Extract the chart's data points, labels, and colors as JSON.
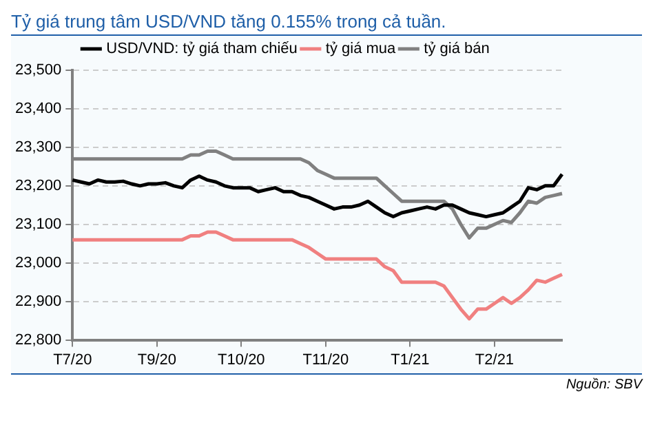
{
  "chart_data": {
    "type": "line",
    "title": "Tỷ giá trung tâm USD/VND tăng 0.155% trong cả tuần.",
    "categories": [
      "T7/20",
      null,
      null,
      null,
      null,
      null,
      null,
      null,
      null,
      null,
      "T9/20",
      null,
      null,
      null,
      null,
      null,
      null,
      null,
      null,
      null,
      "T10/20",
      null,
      null,
      null,
      null,
      null,
      null,
      null,
      null,
      null,
      "T11/20",
      null,
      null,
      null,
      null,
      null,
      null,
      null,
      null,
      null,
      "T1/21",
      null,
      null,
      null,
      null,
      null,
      null,
      null,
      null,
      null,
      "T2/21",
      null,
      null,
      null,
      null,
      null,
      null,
      null,
      null
    ],
    "series": [
      {
        "name": "USD/VND: tỷ giá tham chiếu",
        "color": "#000000",
        "values": [
          23215,
          23210,
          23205,
          23215,
          23210,
          23210,
          23212,
          23205,
          23200,
          23205,
          23205,
          23208,
          23200,
          23195,
          23215,
          23225,
          23215,
          23210,
          23200,
          23195,
          23195,
          23195,
          23185,
          23190,
          23195,
          23185,
          23185,
          23175,
          23170,
          23160,
          23150,
          23140,
          23145,
          23145,
          23150,
          23160,
          23145,
          23130,
          23120,
          23130,
          23135,
          23140,
          23145,
          23140,
          23150,
          23150,
          23140,
          23130,
          23125,
          23120,
          23125,
          23130,
          23145,
          23160,
          23195,
          23190,
          23200,
          23200,
          23230
        ]
      },
      {
        "name": "tỷ giá mua",
        "color": "#f08080",
        "values": [
          23060,
          23060,
          23060,
          23060,
          23060,
          23060,
          23060,
          23060,
          23060,
          23060,
          23060,
          23060,
          23060,
          23060,
          23070,
          23070,
          23080,
          23080,
          23070,
          23060,
          23060,
          23060,
          23060,
          23060,
          23060,
          23060,
          23060,
          23050,
          23040,
          23025,
          23010,
          23010,
          23010,
          23010,
          23010,
          23010,
          23010,
          22990,
          22980,
          22950,
          22950,
          22950,
          22950,
          22950,
          22940,
          22910,
          22880,
          22855,
          22880,
          22880,
          22895,
          22910,
          22895,
          22910,
          22930,
          22955,
          22950,
          22960,
          22970
        ]
      },
      {
        "name": "tỷ giá bán",
        "color": "#808080",
        "values": [
          23270,
          23270,
          23270,
          23270,
          23270,
          23270,
          23270,
          23270,
          23270,
          23270,
          23270,
          23270,
          23270,
          23270,
          23280,
          23280,
          23290,
          23290,
          23280,
          23270,
          23270,
          23270,
          23270,
          23270,
          23270,
          23270,
          23270,
          23270,
          23260,
          23240,
          23230,
          23220,
          23220,
          23220,
          23220,
          23220,
          23220,
          23200,
          23180,
          23160,
          23160,
          23160,
          23160,
          23160,
          23160,
          23140,
          23100,
          23065,
          23090,
          23090,
          23100,
          23110,
          23105,
          23130,
          23160,
          23155,
          23170,
          23175,
          23180
        ]
      }
    ],
    "ylim": [
      22800,
      23500
    ],
    "yticks": [
      {
        "value": 22800,
        "label": "22,800"
      },
      {
        "value": 22900,
        "label": "22,900"
      },
      {
        "value": 23000,
        "label": "23,000"
      },
      {
        "value": 23100,
        "label": "23,100"
      },
      {
        "value": 23200,
        "label": "23,200"
      },
      {
        "value": 23300,
        "label": "23,300"
      },
      {
        "value": 23400,
        "label": "23,400"
      },
      {
        "value": 23500,
        "label": "23,500"
      }
    ],
    "grid": "y",
    "legend": "top",
    "marker": "none",
    "line_style": "solid",
    "annotations": [
      "Nguồn: SBV"
    ]
  }
}
